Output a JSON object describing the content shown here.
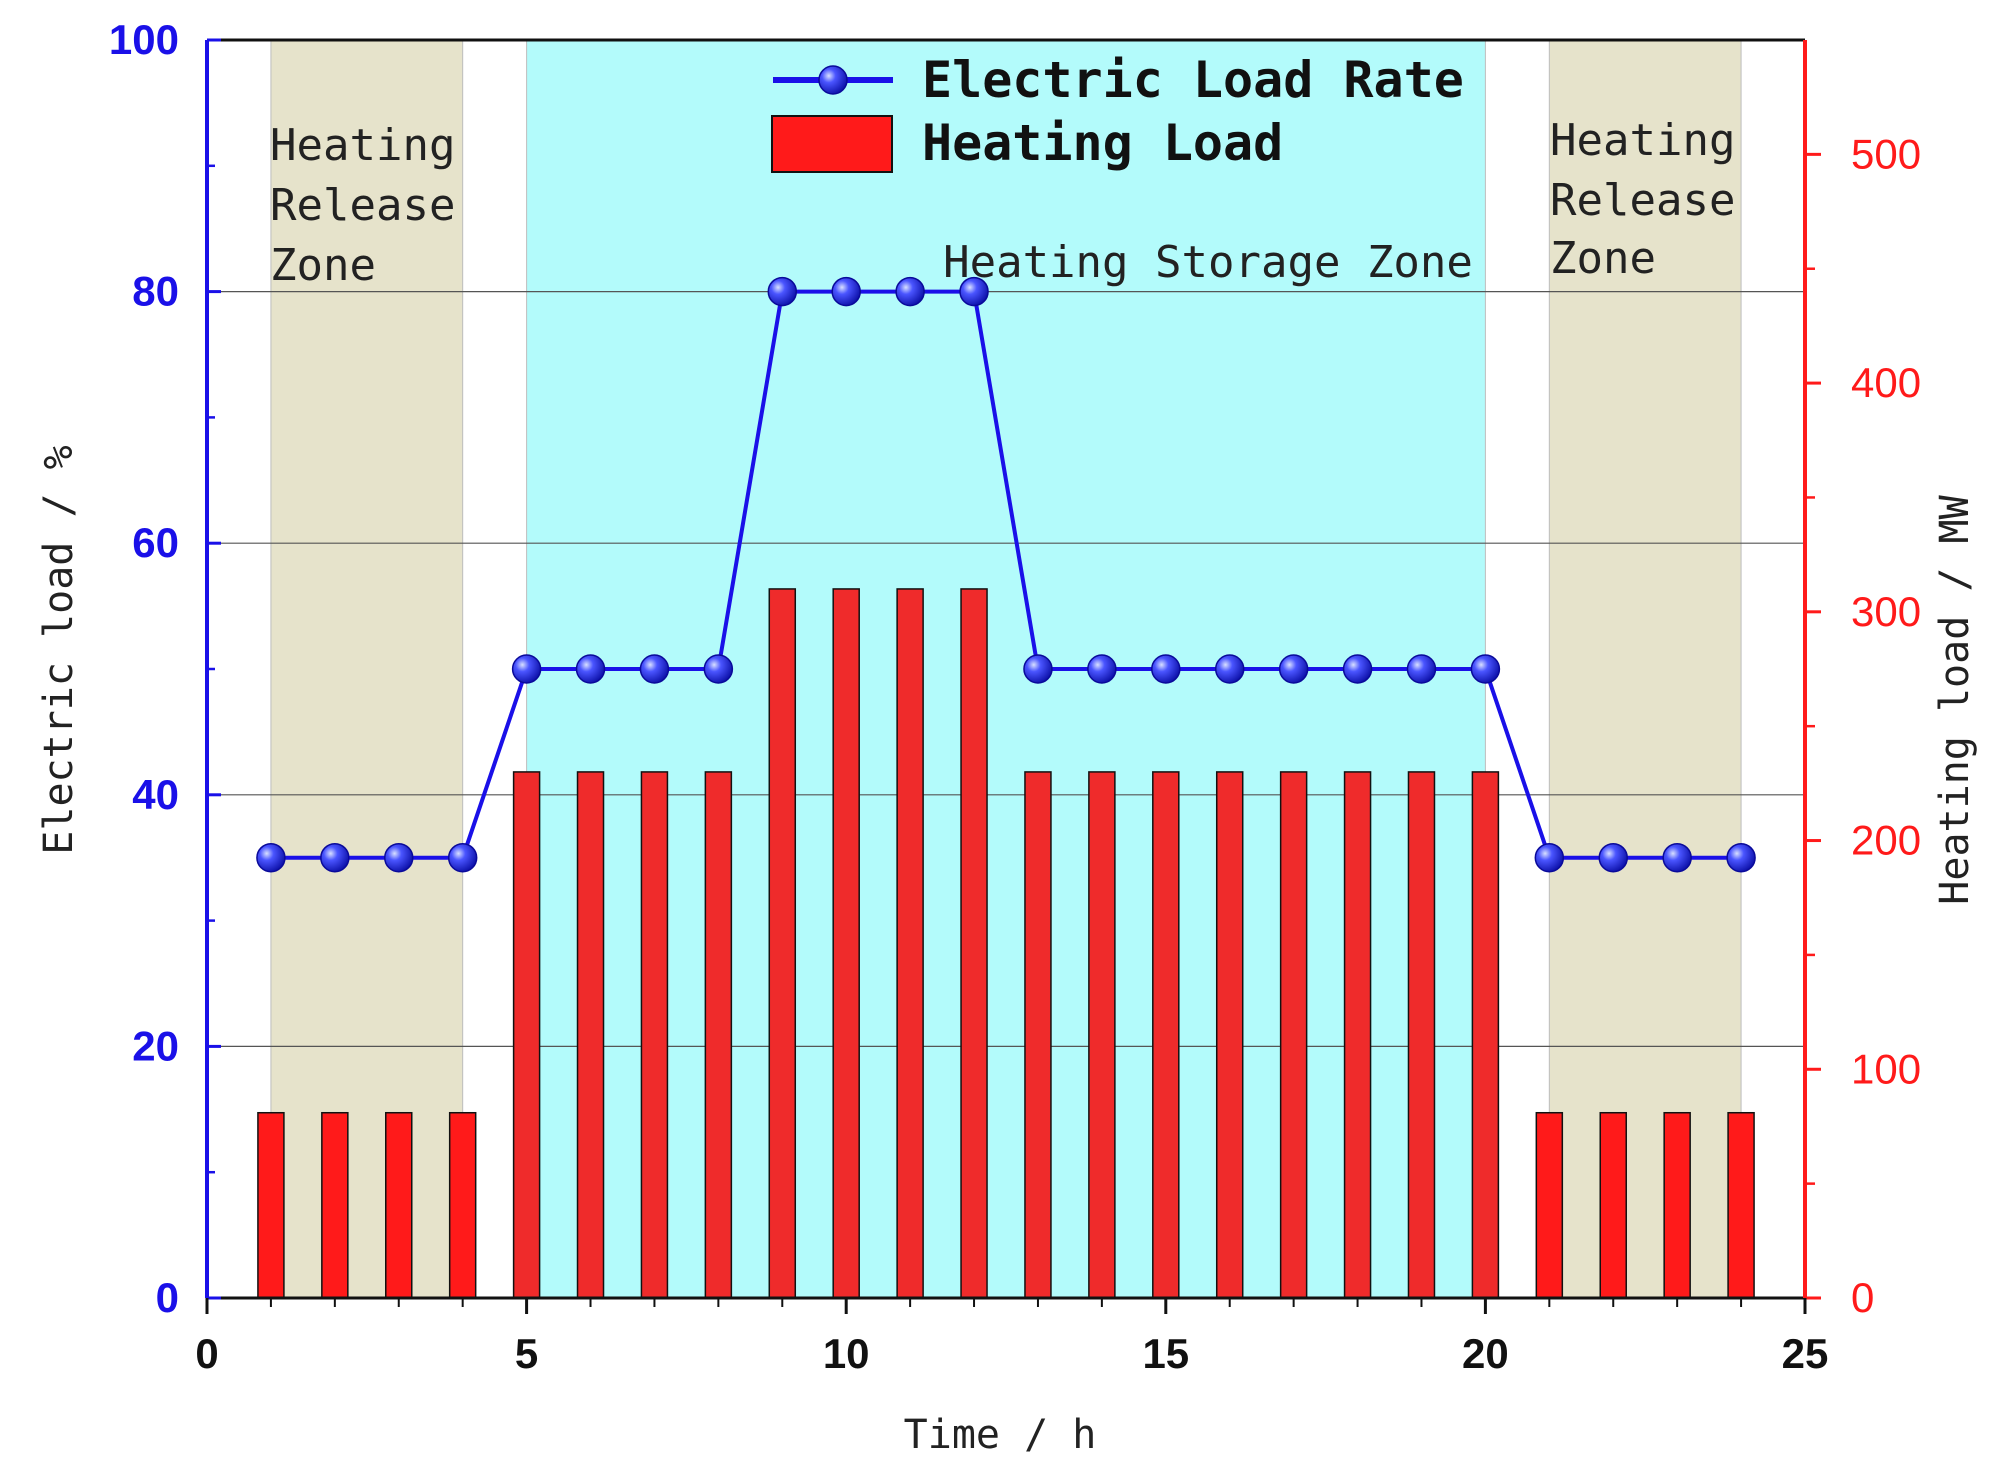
{
  "colors": {
    "electric": "#1a10e8",
    "heating": "#ff1a1a",
    "storage_zone": "#b3fbfb",
    "release_zone": "#e6e3cb",
    "grid": "#555555",
    "axis_left": "#1a10e8",
    "axis_right": "#ff1a1a"
  },
  "legend": {
    "electric_label": "Electric Load Rate",
    "heating_label": "Heating Load"
  },
  "zones": {
    "release_left": [
      "Heating",
      "Release",
      "Zone"
    ],
    "storage": "Heating Storage Zone",
    "release_right": [
      "Heating",
      "Release",
      "Zone"
    ]
  },
  "chart_data": {
    "type": "bar+line",
    "xlabel": "Time / h",
    "ylabel_left": "Electric load / %",
    "ylabel_right": "Heating load / MW",
    "xlim": [
      0,
      25
    ],
    "ylim_left": [
      0,
      100
    ],
    "ylim_right": [
      0,
      550
    ],
    "x_ticks": [
      "0",
      "5",
      "10",
      "15",
      "20",
      "25"
    ],
    "y_ticks_left": [
      "0",
      "20",
      "40",
      "60",
      "80",
      "100"
    ],
    "y_ticks_right": [
      "0",
      "100",
      "200",
      "300",
      "400",
      "500"
    ],
    "grid": "horizontal",
    "legend_position": "top-center",
    "zones": [
      {
        "name": "Heating Release Zone",
        "x_start": 1,
        "x_end": 4
      },
      {
        "name": "Heating Storage Zone",
        "x_start": 5,
        "x_end": 20
      },
      {
        "name": "Heating Release Zone",
        "x_start": 21,
        "x_end": 24
      }
    ],
    "x": [
      1,
      2,
      3,
      4,
      5,
      6,
      7,
      8,
      9,
      10,
      11,
      12,
      13,
      14,
      15,
      16,
      17,
      18,
      19,
      20,
      21,
      22,
      23,
      24
    ],
    "series": [
      {
        "name": "Electric Load Rate",
        "kind": "line",
        "axis": "left",
        "values": [
          35,
          35,
          35,
          35,
          50,
          50,
          50,
          50,
          80,
          80,
          80,
          80,
          50,
          50,
          50,
          50,
          50,
          50,
          50,
          50,
          35,
          35,
          35,
          35
        ]
      },
      {
        "name": "Heating Load",
        "kind": "bar",
        "axis": "right",
        "values": [
          81,
          81,
          81,
          81,
          230,
          230,
          230,
          230,
          310,
          310,
          310,
          310,
          230,
          230,
          230,
          230,
          230,
          230,
          230,
          230,
          81,
          81,
          81,
          81
        ]
      }
    ]
  }
}
